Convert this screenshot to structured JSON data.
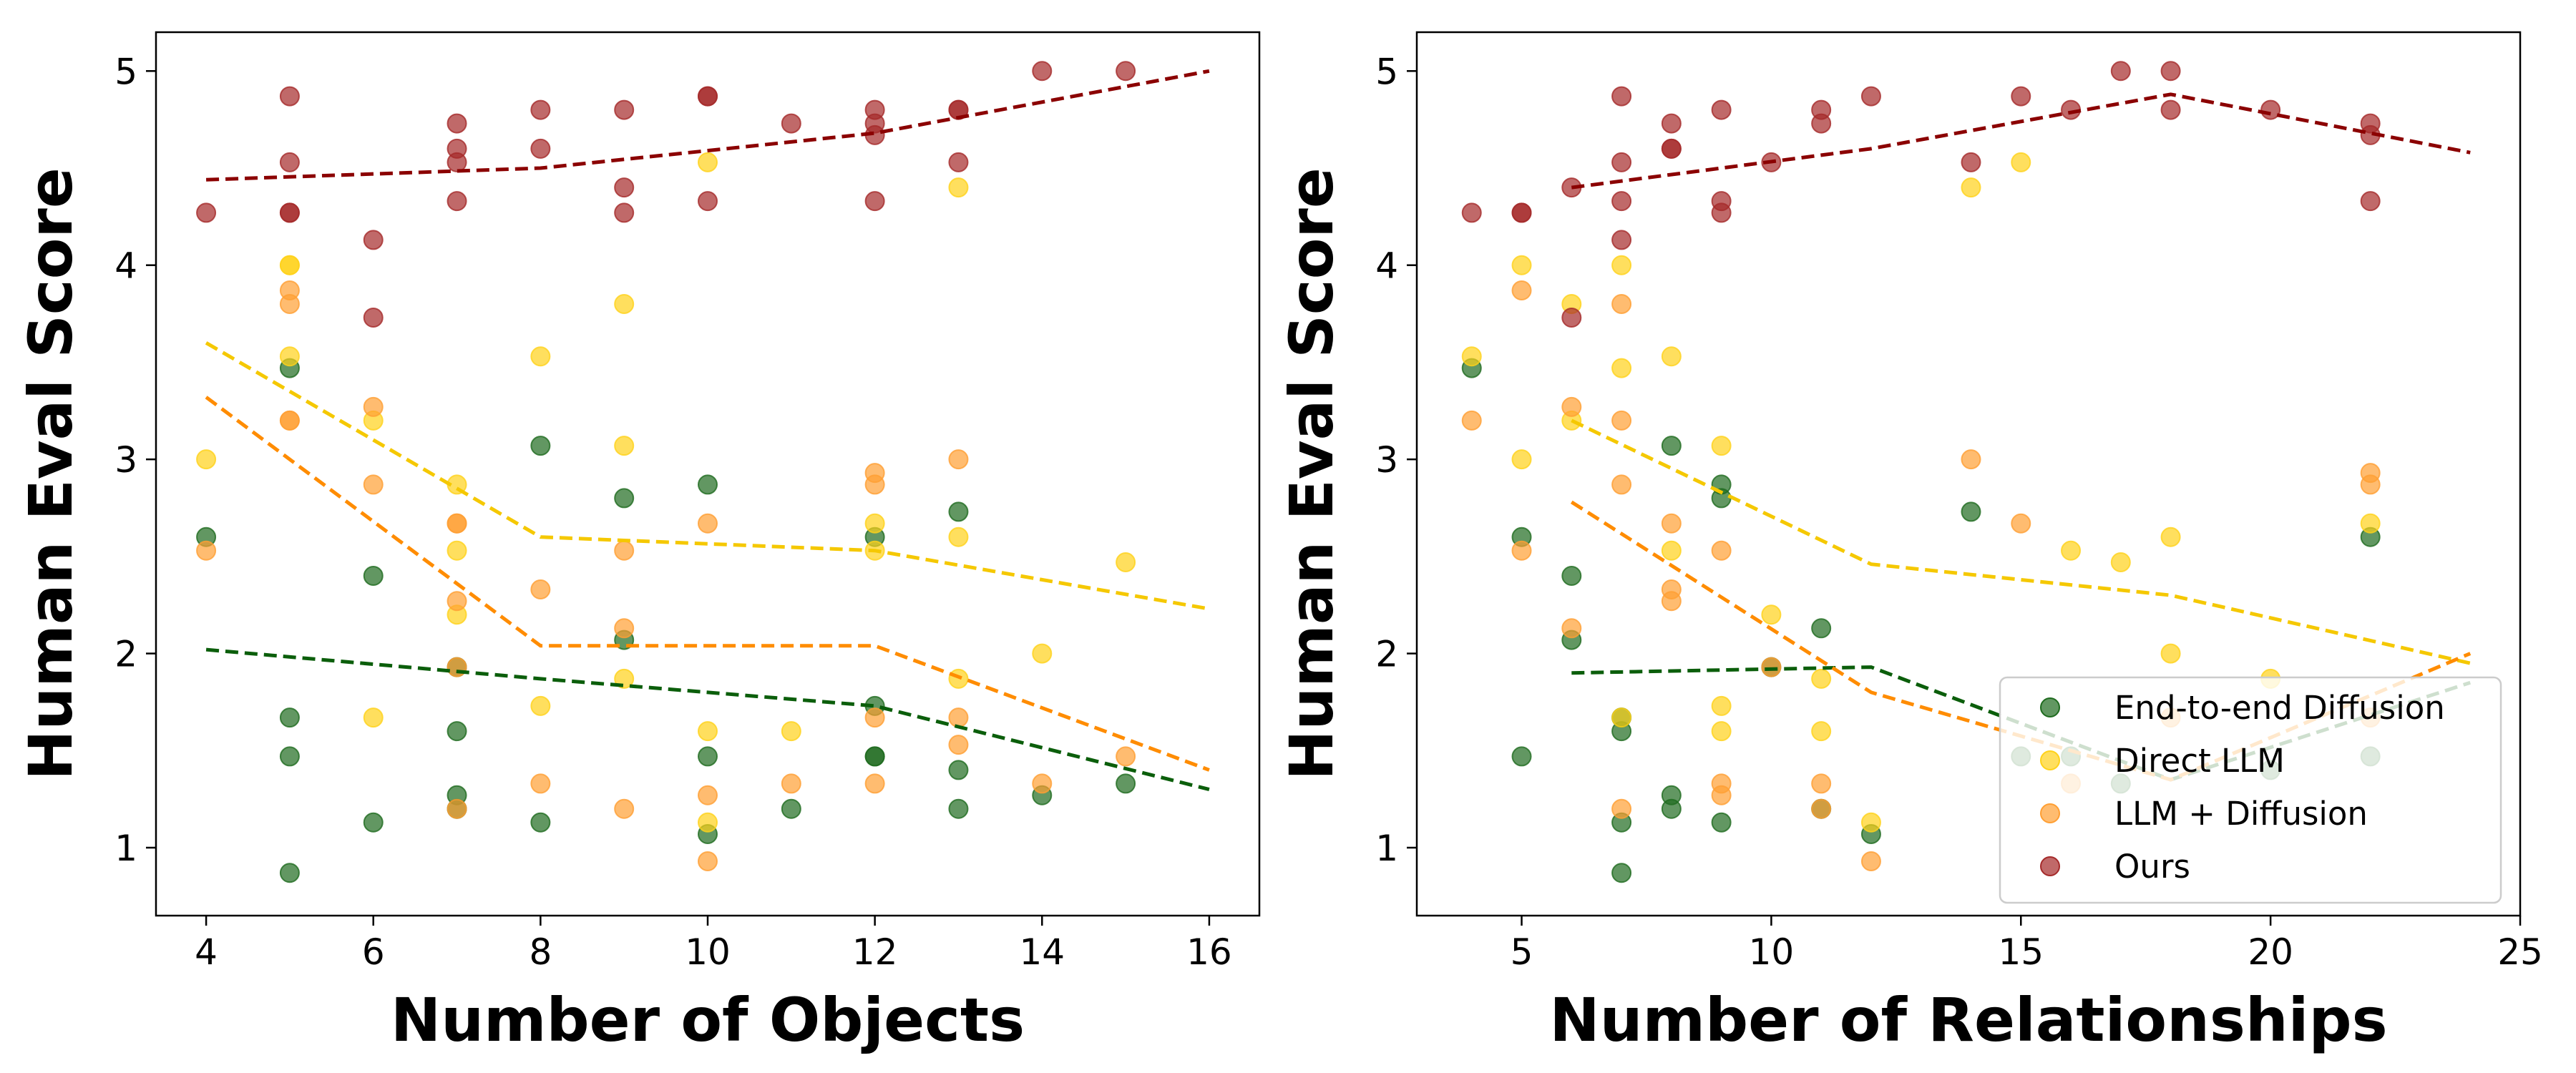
{
  "chart_data": [
    {
      "type": "scatter",
      "xlabel": "Number of Objects",
      "ylabel": "Human Eval Score",
      "xlim": [
        3.4,
        16.6
      ],
      "ylim": [
        0.65,
        5.2
      ],
      "xticks": [
        "4",
        "6",
        "8",
        "10",
        "12",
        "14",
        "16"
      ],
      "xtick_values": [
        4,
        6,
        8,
        10,
        12,
        14,
        16
      ],
      "yticks": [
        "1",
        "2",
        "3",
        "4",
        "5"
      ],
      "ytick_values": [
        1,
        2,
        3,
        4,
        5
      ],
      "series": [
        {
          "name": "End-to-end Diffusion",
          "color": "#1f6b1f",
          "line_color": "#0b5e0b",
          "points": [
            [
              4,
              2.6
            ],
            [
              5,
              3.47
            ],
            [
              5,
              1.67
            ],
            [
              5,
              1.47
            ],
            [
              5,
              0.87
            ],
            [
              6,
              2.4
            ],
            [
              6,
              1.13
            ],
            [
              7,
              1.93
            ],
            [
              7,
              1.6
            ],
            [
              7,
              1.27
            ],
            [
              7,
              1.2
            ],
            [
              8,
              3.07
            ],
            [
              8,
              1.13
            ],
            [
              9,
              2.8
            ],
            [
              9,
              2.07
            ],
            [
              10,
              2.87
            ],
            [
              10,
              1.47
            ],
            [
              10,
              1.07
            ],
            [
              11,
              1.2
            ],
            [
              12,
              2.6
            ],
            [
              12,
              1.73
            ],
            [
              12,
              1.47
            ],
            [
              12,
              1.47
            ],
            [
              13,
              2.73
            ],
            [
              13,
              1.4
            ],
            [
              13,
              1.2
            ],
            [
              14,
              1.27
            ],
            [
              15,
              1.33
            ]
          ],
          "trend": [
            [
              4,
              2.02
            ],
            [
              8,
              1.87
            ],
            [
              12,
              1.73
            ],
            [
              16,
              1.3
            ]
          ]
        },
        {
          "name": "Direct LLM",
          "color": "#ffd21a",
          "line_color": "#f5c800",
          "points": [
            [
              4,
              3.0
            ],
            [
              5,
              4.0
            ],
            [
              5,
              4.0
            ],
            [
              5,
              3.53
            ],
            [
              6,
              3.2
            ],
            [
              6,
              1.67
            ],
            [
              7,
              2.87
            ],
            [
              7,
              2.53
            ],
            [
              7,
              2.2
            ],
            [
              8,
              3.53
            ],
            [
              8,
              1.73
            ],
            [
              9,
              3.8
            ],
            [
              9,
              3.07
            ],
            [
              9,
              1.87
            ],
            [
              10,
              4.53
            ],
            [
              10,
              1.6
            ],
            [
              10,
              1.13
            ],
            [
              11,
              1.6
            ],
            [
              12,
              2.67
            ],
            [
              12,
              2.53
            ],
            [
              13,
              4.4
            ],
            [
              13,
              2.6
            ],
            [
              13,
              1.87
            ],
            [
              14,
              2.0
            ],
            [
              15,
              2.47
            ]
          ],
          "trend": [
            [
              4,
              3.6
            ],
            [
              8,
              2.6
            ],
            [
              12,
              2.53
            ],
            [
              16,
              2.23
            ]
          ]
        },
        {
          "name": "LLM + Diffusion",
          "color": "#ff9f33",
          "line_color": "#ff8c00",
          "points": [
            [
              4,
              2.53
            ],
            [
              5,
              3.87
            ],
            [
              5,
              3.8
            ],
            [
              5,
              3.2
            ],
            [
              5,
              3.2
            ],
            [
              6,
              3.27
            ],
            [
              6,
              2.87
            ],
            [
              7,
              2.67
            ],
            [
              7,
              2.67
            ],
            [
              7,
              2.27
            ],
            [
              7,
              1.93
            ],
            [
              7,
              1.2
            ],
            [
              8,
              2.33
            ],
            [
              8,
              1.33
            ],
            [
              9,
              2.53
            ],
            [
              9,
              2.13
            ],
            [
              9,
              1.2
            ],
            [
              10,
              2.67
            ],
            [
              10,
              1.27
            ],
            [
              10,
              0.93
            ],
            [
              11,
              1.33
            ],
            [
              12,
              2.93
            ],
            [
              12,
              2.87
            ],
            [
              12,
              1.67
            ],
            [
              12,
              1.33
            ],
            [
              13,
              3.0
            ],
            [
              13,
              1.67
            ],
            [
              13,
              1.53
            ],
            [
              14,
              1.33
            ],
            [
              15,
              1.47
            ]
          ],
          "trend": [
            [
              4,
              3.32
            ],
            [
              8,
              2.04
            ],
            [
              12,
              2.04
            ],
            [
              16,
              1.4
            ]
          ]
        },
        {
          "name": "Ours",
          "color": "#a52a2a",
          "line_color": "#8b0000",
          "points": [
            [
              4,
              4.27
            ],
            [
              5,
              4.87
            ],
            [
              5,
              4.53
            ],
            [
              5,
              4.27
            ],
            [
              5,
              4.27
            ],
            [
              6,
              4.13
            ],
            [
              6,
              3.73
            ],
            [
              7,
              4.73
            ],
            [
              7,
              4.6
            ],
            [
              7,
              4.53
            ],
            [
              7,
              4.33
            ],
            [
              8,
              4.8
            ],
            [
              8,
              4.6
            ],
            [
              9,
              4.8
            ],
            [
              9,
              4.4
            ],
            [
              9,
              4.27
            ],
            [
              10,
              4.87
            ],
            [
              10,
              4.87
            ],
            [
              10,
              4.33
            ],
            [
              11,
              4.73
            ],
            [
              12,
              4.8
            ],
            [
              12,
              4.73
            ],
            [
              12,
              4.67
            ],
            [
              12,
              4.33
            ],
            [
              13,
              4.8
            ],
            [
              13,
              4.8
            ],
            [
              13,
              4.53
            ],
            [
              14,
              5.0
            ],
            [
              15,
              5.0
            ]
          ],
          "trend": [
            [
              4,
              4.44
            ],
            [
              8,
              4.5
            ],
            [
              12,
              4.68
            ],
            [
              16,
              5.0
            ]
          ]
        }
      ]
    },
    {
      "type": "scatter",
      "xlabel": "Number of Relationships",
      "ylabel": "Human Eval Score",
      "xlim": [
        2.9,
        25.0
      ],
      "ylim": [
        0.65,
        5.2
      ],
      "xticks": [
        "5",
        "10",
        "15",
        "20",
        "25"
      ],
      "xtick_values": [
        5,
        10,
        15,
        20,
        25
      ],
      "yticks": [
        "1",
        "2",
        "3",
        "4",
        "5"
      ],
      "ytick_values": [
        1,
        2,
        3,
        4,
        5
      ],
      "legend_position": "lower-right",
      "series": [
        {
          "name": "End-to-end Diffusion",
          "color": "#1f6b1f",
          "line_color": "#0b5e0b",
          "points": [
            [
              4,
              3.47
            ],
            [
              5,
              2.6
            ],
            [
              5,
              1.47
            ],
            [
              6,
              2.4
            ],
            [
              6,
              2.07
            ],
            [
              7,
              1.6
            ],
            [
              7,
              1.67
            ],
            [
              7,
              1.13
            ],
            [
              7,
              0.87
            ],
            [
              8,
              3.07
            ],
            [
              8,
              1.27
            ],
            [
              8,
              1.2
            ],
            [
              9,
              2.87
            ],
            [
              9,
              2.8
            ],
            [
              9,
              1.13
            ],
            [
              10,
              1.93
            ],
            [
              11,
              2.13
            ],
            [
              11,
              1.2
            ],
            [
              12,
              1.07
            ],
            [
              14,
              2.73
            ],
            [
              15,
              1.47
            ],
            [
              16,
              1.47
            ],
            [
              17,
              1.33
            ],
            [
              20,
              1.4
            ],
            [
              22,
              2.6
            ],
            [
              22,
              1.47
            ]
          ],
          "trend": [
            [
              6,
              1.9
            ],
            [
              12,
              1.93
            ],
            [
              18,
              1.35
            ],
            [
              24,
              1.85
            ]
          ]
        },
        {
          "name": "Direct LLM",
          "color": "#ffd21a",
          "line_color": "#f5c800",
          "points": [
            [
              4,
              3.53
            ],
            [
              5,
              4.0
            ],
            [
              5,
              3.0
            ],
            [
              6,
              3.8
            ],
            [
              6,
              3.2
            ],
            [
              7,
              4.0
            ],
            [
              7,
              3.47
            ],
            [
              7,
              1.67
            ],
            [
              8,
              3.53
            ],
            [
              8,
              2.53
            ],
            [
              9,
              3.07
            ],
            [
              9,
              1.73
            ],
            [
              9,
              1.6
            ],
            [
              10,
              2.2
            ],
            [
              11,
              1.87
            ],
            [
              11,
              1.6
            ],
            [
              12,
              1.13
            ],
            [
              14,
              4.4
            ],
            [
              15,
              4.53
            ],
            [
              16,
              2.53
            ],
            [
              17,
              2.47
            ],
            [
              18,
              2.6
            ],
            [
              18,
              2.0
            ],
            [
              20,
              1.87
            ],
            [
              22,
              2.67
            ]
          ],
          "trend": [
            [
              6,
              3.2
            ],
            [
              12,
              2.46
            ],
            [
              18,
              2.3
            ],
            [
              24,
              1.95
            ]
          ]
        },
        {
          "name": "LLM + Diffusion",
          "color": "#ff9f33",
          "line_color": "#ff8c00",
          "points": [
            [
              4,
              3.2
            ],
            [
              5,
              3.87
            ],
            [
              5,
              2.53
            ],
            [
              6,
              3.27
            ],
            [
              6,
              2.13
            ],
            [
              7,
              3.8
            ],
            [
              7,
              3.2
            ],
            [
              7,
              2.87
            ],
            [
              7,
              1.2
            ],
            [
              8,
              2.67
            ],
            [
              8,
              2.33
            ],
            [
              8,
              2.27
            ],
            [
              9,
              2.53
            ],
            [
              9,
              1.33
            ],
            [
              9,
              1.27
            ],
            [
              10,
              1.93
            ],
            [
              11,
              1.33
            ],
            [
              11,
              1.2
            ],
            [
              12,
              0.93
            ],
            [
              14,
              3.0
            ],
            [
              15,
              2.67
            ],
            [
              16,
              1.33
            ],
            [
              18,
              1.67
            ],
            [
              22,
              2.93
            ],
            [
              22,
              2.87
            ],
            [
              22,
              1.67
            ]
          ],
          "trend": [
            [
              6,
              2.78
            ],
            [
              12,
              1.8
            ],
            [
              18,
              1.35
            ],
            [
              24,
              2.0
            ]
          ]
        },
        {
          "name": "Ours",
          "color": "#a52a2a",
          "line_color": "#8b0000",
          "points": [
            [
              4,
              4.27
            ],
            [
              5,
              4.27
            ],
            [
              5,
              4.27
            ],
            [
              6,
              4.4
            ],
            [
              6,
              3.73
            ],
            [
              7,
              4.87
            ],
            [
              7,
              4.53
            ],
            [
              7,
              4.33
            ],
            [
              7,
              4.13
            ],
            [
              8,
              4.73
            ],
            [
              8,
              4.6
            ],
            [
              8,
              4.6
            ],
            [
              9,
              4.8
            ],
            [
              9,
              4.33
            ],
            [
              9,
              4.27
            ],
            [
              10,
              4.53
            ],
            [
              11,
              4.8
            ],
            [
              11,
              4.73
            ],
            [
              12,
              4.87
            ],
            [
              14,
              4.53
            ],
            [
              15,
              4.87
            ],
            [
              16,
              4.8
            ],
            [
              17,
              5.0
            ],
            [
              18,
              5.0
            ],
            [
              18,
              4.8
            ],
            [
              20,
              4.8
            ],
            [
              22,
              4.73
            ],
            [
              22,
              4.67
            ],
            [
              22,
              4.33
            ]
          ],
          "trend": [
            [
              6,
              4.4
            ],
            [
              12,
              4.6
            ],
            [
              18,
              4.88
            ],
            [
              24,
              4.58
            ]
          ]
        }
      ]
    }
  ]
}
